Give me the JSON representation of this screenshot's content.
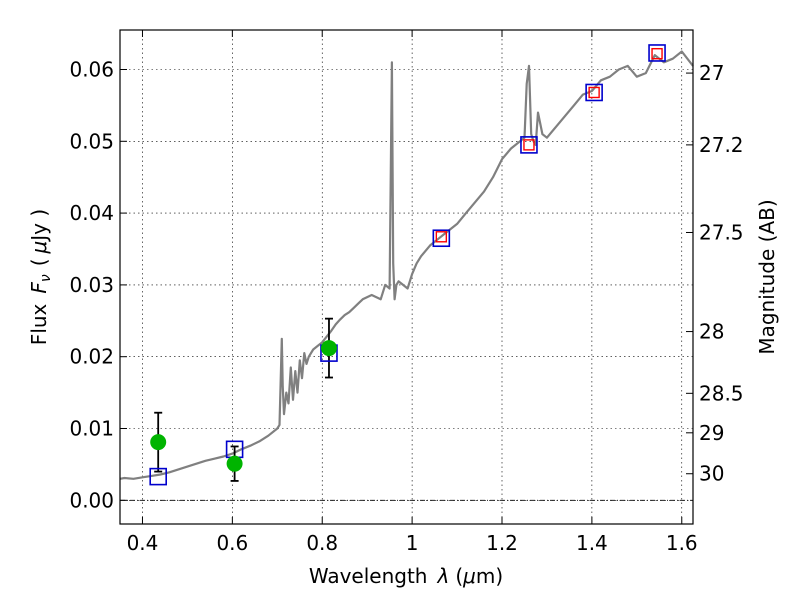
{
  "chart_data": {
    "type": "scatter",
    "title": "",
    "xlabel": "Wavelength",
    "xlabel_symbol": "λ",
    "xlabel_unit_open": "(",
    "xlabel_unit_mu": "μ",
    "xlabel_unit_rest": "m)",
    "ylabel": "Flux",
    "ylabel_symbol": "F",
    "ylabel_symbol_sub": "ν",
    "ylabel_unit_open": "(",
    "ylabel_unit_mu": "μ",
    "ylabel_unit_rest": "Jy )",
    "y2label": "Magnitude (AB)",
    "xlim": [
      0.35,
      1.625
    ],
    "ylim": [
      -0.0033,
      0.0655
    ],
    "grid": true,
    "x_ticks": [
      0.4,
      0.6,
      0.8,
      1.0,
      1.2,
      1.4,
      1.6
    ],
    "x_tick_labels": [
      "0.4",
      "0.6",
      "0.8",
      "1",
      "1.2",
      "1.4",
      "1.6"
    ],
    "y_ticks": [
      0.0,
      0.01,
      0.02,
      0.03,
      0.04,
      0.05,
      0.06
    ],
    "y_tick_labels": [
      "0.00",
      "0.01",
      "0.02",
      "0.03",
      "0.04",
      "0.05",
      "0.06"
    ],
    "y2_ticks": [
      {
        "label": "27",
        "flux": 0.0595
      },
      {
        "label": "27.2",
        "flux": 0.0495
      },
      {
        "label": "27.5",
        "flux": 0.0373
      },
      {
        "label": "28",
        "flux": 0.0235
      },
      {
        "label": "28.5",
        "flux": 0.0149
      },
      {
        "label": "29",
        "flux": 0.0094
      },
      {
        "label": "30",
        "flux": 0.0037
      }
    ],
    "series": [
      {
        "name": "model spectrum",
        "kind": "line",
        "color": "#808080",
        "x": [
          0.35,
          0.36,
          0.38,
          0.4,
          0.42,
          0.44,
          0.46,
          0.48,
          0.5,
          0.52,
          0.54,
          0.56,
          0.58,
          0.6,
          0.62,
          0.64,
          0.66,
          0.68,
          0.7,
          0.705,
          0.71,
          0.712,
          0.715,
          0.72,
          0.725,
          0.73,
          0.735,
          0.74,
          0.745,
          0.75,
          0.755,
          0.76,
          0.765,
          0.77,
          0.78,
          0.79,
          0.8,
          0.81,
          0.82,
          0.83,
          0.84,
          0.85,
          0.86,
          0.87,
          0.88,
          0.89,
          0.9,
          0.91,
          0.92,
          0.93,
          0.94,
          0.95,
          0.955,
          0.958,
          0.961,
          0.965,
          0.97,
          0.98,
          0.99,
          1.0,
          1.01,
          1.02,
          1.04,
          1.06,
          1.08,
          1.1,
          1.12,
          1.14,
          1.16,
          1.18,
          1.2,
          1.22,
          1.24,
          1.25,
          1.255,
          1.26,
          1.265,
          1.27,
          1.275,
          1.28,
          1.29,
          1.3,
          1.32,
          1.34,
          1.36,
          1.38,
          1.4,
          1.42,
          1.44,
          1.46,
          1.48,
          1.5,
          1.52,
          1.54,
          1.56,
          1.58,
          1.6,
          1.625
        ],
        "y": [
          0.003,
          0.0031,
          0.003,
          0.0032,
          0.0034,
          0.0036,
          0.0039,
          0.0043,
          0.0047,
          0.0051,
          0.0055,
          0.0058,
          0.0061,
          0.0065,
          0.0071,
          0.0076,
          0.0082,
          0.009,
          0.01,
          0.0105,
          0.0225,
          0.016,
          0.012,
          0.015,
          0.0135,
          0.0185,
          0.014,
          0.018,
          0.015,
          0.0195,
          0.017,
          0.0205,
          0.019,
          0.02,
          0.021,
          0.0215,
          0.022,
          0.0228,
          0.0236,
          0.0245,
          0.0252,
          0.0258,
          0.0262,
          0.0268,
          0.0274,
          0.028,
          0.0283,
          0.0286,
          0.0283,
          0.028,
          0.03,
          0.0295,
          0.061,
          0.033,
          0.028,
          0.03,
          0.0305,
          0.03,
          0.0295,
          0.0315,
          0.033,
          0.034,
          0.0355,
          0.0365,
          0.0375,
          0.0385,
          0.04,
          0.0415,
          0.043,
          0.045,
          0.0475,
          0.049,
          0.05,
          0.0505,
          0.058,
          0.0605,
          0.051,
          0.05,
          0.0495,
          0.054,
          0.051,
          0.0505,
          0.052,
          0.0535,
          0.055,
          0.0565,
          0.057,
          0.0585,
          0.059,
          0.06,
          0.0605,
          0.059,
          0.0595,
          0.062,
          0.061,
          0.0615,
          0.0625,
          0.0605
        ]
      },
      {
        "name": "model photometry",
        "kind": "open-square",
        "color": "#0000cc",
        "x": [
          0.435,
          0.605,
          0.815,
          1.065,
          1.26,
          1.405,
          1.545
        ],
        "y": [
          0.0033,
          0.0071,
          0.0205,
          0.0365,
          0.0495,
          0.0568,
          0.0623
        ]
      },
      {
        "name": "observed upper flux",
        "kind": "open-square-small",
        "color": "#ff0000",
        "x": [
          1.065,
          1.26,
          1.405,
          1.545
        ],
        "y": [
          0.0367,
          0.0495,
          0.0568,
          0.0622
        ]
      },
      {
        "name": "observed photometry",
        "kind": "filled-circle",
        "color": "#00b400",
        "x": [
          0.435,
          0.605,
          0.815
        ],
        "y": [
          0.0081,
          0.0051,
          0.0212
        ],
        "yerr": [
          0.0041,
          0.0024,
          0.0041
        ]
      }
    ]
  }
}
